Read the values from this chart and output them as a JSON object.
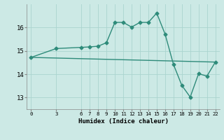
{
  "line1_x": [
    0,
    3,
    6,
    7,
    8,
    9,
    10,
    11,
    12,
    13,
    14,
    15,
    16,
    17,
    18,
    19,
    20,
    21,
    22
  ],
  "line1_y": [
    14.72,
    15.1,
    15.15,
    15.17,
    15.2,
    15.35,
    16.22,
    16.22,
    16.02,
    16.22,
    16.22,
    16.62,
    15.72,
    14.42,
    13.52,
    13.02,
    14.02,
    13.92,
    14.52
  ],
  "line2_x": [
    0,
    22
  ],
  "line2_y": [
    14.72,
    14.52
  ],
  "line_color": "#2e8b7a",
  "bg_color": "#cce9e5",
  "grid_color": "#aad4cf",
  "xlabel": "Humidex (Indice chaleur)",
  "xticks": [
    0,
    3,
    6,
    7,
    8,
    9,
    10,
    11,
    12,
    13,
    14,
    15,
    16,
    17,
    18,
    19,
    20,
    21,
    22
  ],
  "yticks": [
    13,
    14,
    15,
    16
  ],
  "ylim": [
    12.5,
    17.0
  ],
  "xlim": [
    -0.5,
    22.5
  ],
  "marker": "D",
  "markersize": 2.5,
  "linewidth": 1.0
}
